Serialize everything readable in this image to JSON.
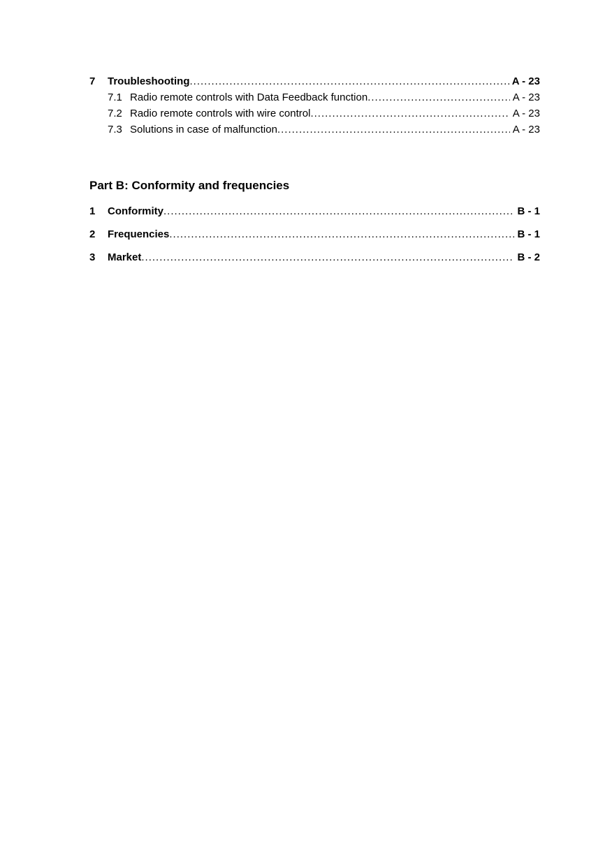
{
  "dots": "..............................................................................................................................................................................................",
  "colors": {
    "text": "#000000",
    "background": "#ffffff"
  },
  "typography": {
    "heading_fontsize_pt": 13,
    "body_fontsize_pt": 11,
    "font_family": "Arial"
  },
  "partA": {
    "section7": {
      "num": "7",
      "title": "Troubleshooting",
      "page": "A - 23",
      "items": [
        {
          "num": "7.1",
          "title": "Radio remote controls with Data Feedback function",
          "page": "A - 23"
        },
        {
          "num": "7.2",
          "title": "Radio remote controls with wire control",
          "page": "A - 23"
        },
        {
          "num": "7.3",
          "title": "Solutions in case of malfunction",
          "page": "A - 23"
        }
      ]
    }
  },
  "partB": {
    "heading": "Part B: Conformity and frequencies",
    "items": [
      {
        "num": "1",
        "title": "Conformity",
        "page": "B - 1"
      },
      {
        "num": "2",
        "title": "Frequencies",
        "page": "B - 1"
      },
      {
        "num": "3",
        "title": "Market",
        "page": "B - 2"
      }
    ]
  }
}
